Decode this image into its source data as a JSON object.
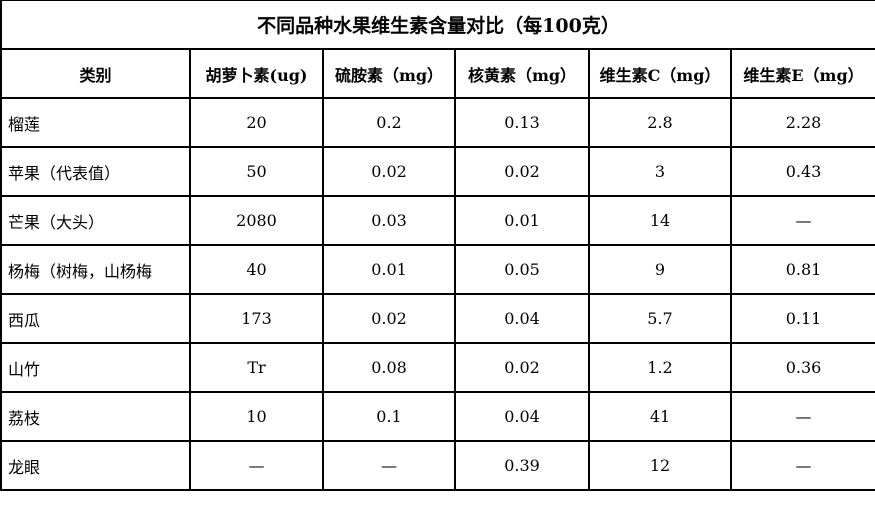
{
  "title": "不同品种水果维生素含量对比（每100克）",
  "headers": [
    "类别",
    "胡萝卜素(ug)",
    "硫胺素（mg）",
    "核黄素（mg）",
    "维生素C（mg）",
    "维生素E（mg）"
  ],
  "rows": [
    [
      "榴莲",
      "20",
      "0.2",
      "0.13",
      "2.8",
      "2.28"
    ],
    [
      "苹果（代表值）",
      "50",
      "0.02",
      "0.02",
      "3",
      "0.43"
    ],
    [
      "芒果（大头）",
      "2080",
      "0.03",
      "0.01",
      "14",
      "—"
    ],
    [
      "杨梅（树梅，山杨梅",
      "40",
      "0.01",
      "0.05",
      "9",
      "0.81"
    ],
    [
      "西瓜",
      "173",
      "0.02",
      "0.04",
      "5.7",
      "0.11"
    ],
    [
      "山竹",
      "Tr",
      "0.08",
      "0.02",
      "1.2",
      "0.36"
    ],
    [
      "荔枝",
      "10",
      "0.1",
      "0.04",
      "41",
      "—"
    ],
    [
      "龙眼",
      "—",
      "—",
      "0.39",
      "12",
      "—"
    ]
  ]
}
